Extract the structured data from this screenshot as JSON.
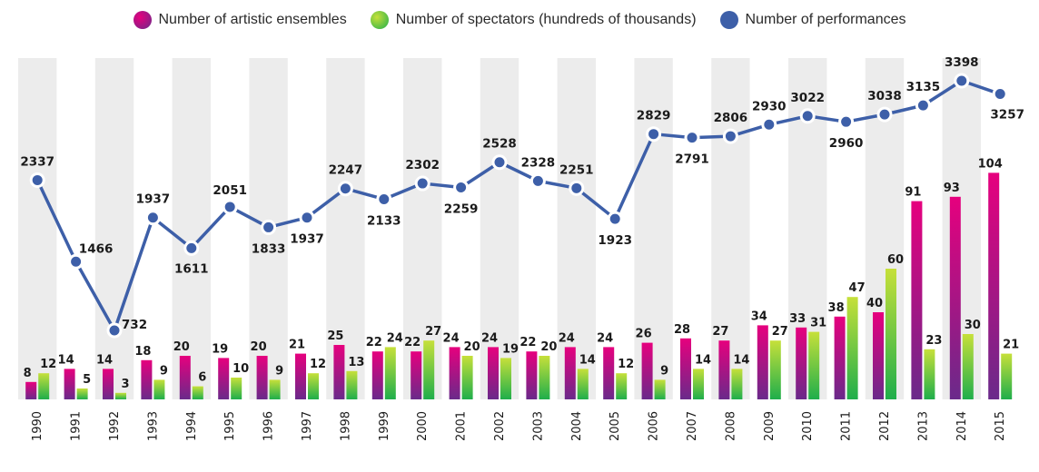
{
  "chart_data": {
    "type": "bar",
    "categories": [
      "1990",
      "1991",
      "1992",
      "1993",
      "1994",
      "1995",
      "1996",
      "1997",
      "1998",
      "1999",
      "2000",
      "2001",
      "2002",
      "2003",
      "2004",
      "2005",
      "2006",
      "2007",
      "2008",
      "2009",
      "2010",
      "2011",
      "2012",
      "2013",
      "2014",
      "2015"
    ],
    "series": [
      {
        "name": "Number of artistic ensembles",
        "kind": "bar",
        "color_top": "#e6007e",
        "color_bottom": "#6a2a8a",
        "values": [
          8,
          14,
          14,
          18,
          20,
          19,
          20,
          21,
          25,
          22,
          22,
          24,
          24,
          22,
          24,
          24,
          26,
          28,
          27,
          34,
          33,
          38,
          40,
          91,
          93,
          104
        ]
      },
      {
        "name": "Number of spectators (hundreds of thousands)",
        "kind": "bar",
        "color_top": "#c6e03a",
        "color_bottom": "#1fae4b",
        "values": [
          12,
          5,
          3,
          9,
          6,
          10,
          9,
          12,
          13,
          24,
          27,
          20,
          19,
          20,
          14,
          12,
          9,
          14,
          14,
          27,
          31,
          47,
          60,
          23,
          30,
          21
        ]
      },
      {
        "name": "Number of performances",
        "kind": "line",
        "color": "#3d5fa8",
        "values": [
          2337,
          1466,
          732,
          1937,
          1611,
          2051,
          1833,
          1937,
          2247,
          2133,
          2302,
          2259,
          2528,
          2328,
          2251,
          1923,
          2829,
          2791,
          2806,
          2930,
          3022,
          2960,
          3038,
          3135,
          3398,
          3257
        ]
      }
    ],
    "legend_position": "top-center",
    "stripe_color": "#ececec"
  }
}
